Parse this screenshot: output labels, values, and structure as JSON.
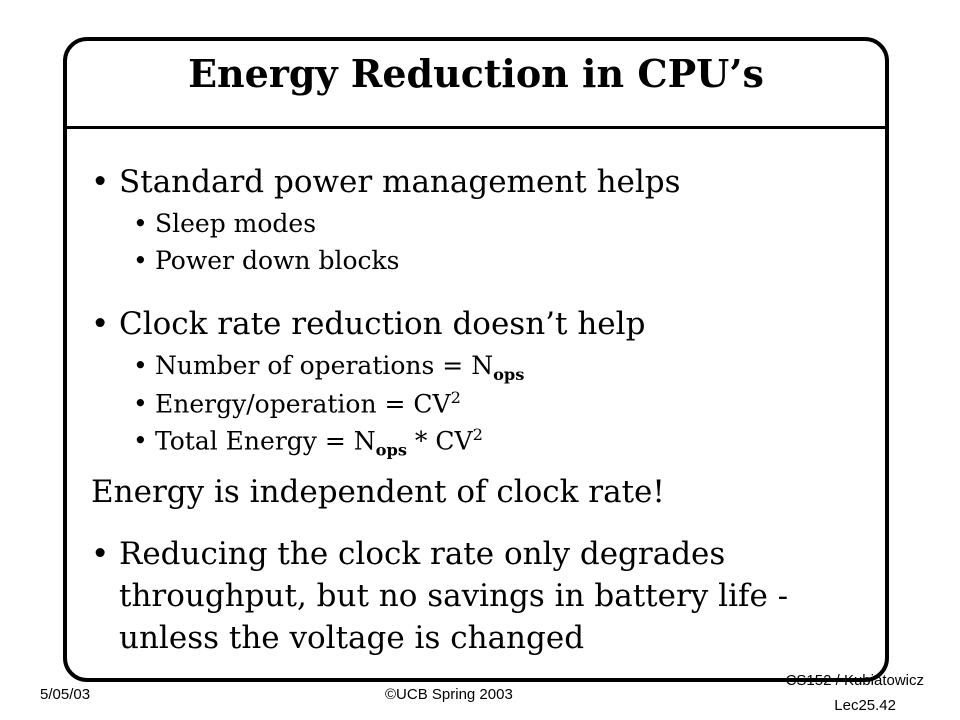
{
  "slide": {
    "title": "Energy Reduction in CPU’s",
    "bullet_symbol": "•",
    "bullets": [
      {
        "text": "Standard power management  helps",
        "sub": [
          "Sleep modes",
          "Power down blocks"
        ]
      },
      {
        "text": "Clock rate reduction doesn’t help",
        "sub_ops_label": "Number of operations = N",
        "sub_ops_subscript": "ops",
        "sub_energy_label": "Energy/operation = CV",
        "sub_energy_sup": "2",
        "sub_total_label": "Total Energy = N",
        "sub_total_subscript": "ops",
        "sub_total_mid": " * CV",
        "sub_total_sup": "2"
      }
    ],
    "statement": "Energy is independent of clock rate!",
    "last_bullet_lines": [
      "Reducing the clock rate only degrades",
      "throughput, but no savings in battery life -",
      "unless the voltage is changed"
    ]
  },
  "footer": {
    "date": "5/05/03",
    "copyright": "©UCB Spring 2003",
    "course": "CS152 / Kubiatowicz",
    "lecture": "Lec25.42"
  }
}
